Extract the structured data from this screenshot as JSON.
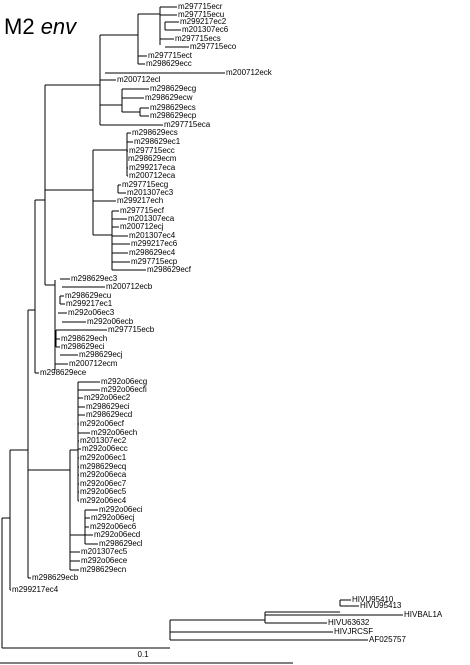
{
  "title": [
    "M2",
    "env"
  ],
  "scale_label": "0.1",
  "leaves": [
    "m297715ecr",
    "m297715ecu",
    "m299217ec2",
    "m201307ec6",
    "m297715ecs",
    "m297715eco",
    "m297715ect",
    "m298629ecc",
    "m200712eck",
    "m200712ecl",
    "m298629ecg",
    "m298629ecw",
    "m298629ecs",
    "m298629ecp",
    "m297715eca",
    "m298629ecs",
    "m298629ec1",
    "m297715ecc",
    "m298629ecm",
    "m299217eca",
    "m200712eca",
    "m297715ecg",
    "m201307ec3",
    "m299217ech",
    "m297715ecf",
    "m201307eca",
    "m200712ecj",
    "m201307ec4",
    "m299217ec6",
    "m298629ec4",
    "m297715ecp",
    "m298629ecf",
    "m298629ec3",
    "m200712ecb",
    "m298629ecu",
    "m299217ec1",
    "m292o06ec3",
    "m292o06ecb",
    "m297715ecb",
    "m298629ech",
    "m298629eci",
    "m298629ecj",
    "m200712ecm",
    "m298629ece",
    "m292o06ecg",
    "m292o06ecfi",
    "m292o06ec2",
    "m298629eci",
    "m298629ecd",
    "m292o06ecf",
    "m292o06ech",
    "m201307ec2",
    "m292o06ecc",
    "m292o06ec1",
    "m298629ecq",
    "m292o06eca",
    "m292o06ec7",
    "m292o06ec5",
    "m292o06ec4",
    "m292o06eci",
    "m292o06ecj",
    "m292o06ec6",
    "m292o06ecd",
    "m298629ecl",
    "m201307ec5",
    "m292o06ece",
    "m298629ecn",
    "m298629ecb",
    "m299217ec4",
    "HIVU95410",
    "HIVU95413",
    "HIVBAL1A",
    "HIVU63632",
    "HIVJRCSF",
    "AF025757"
  ]
}
